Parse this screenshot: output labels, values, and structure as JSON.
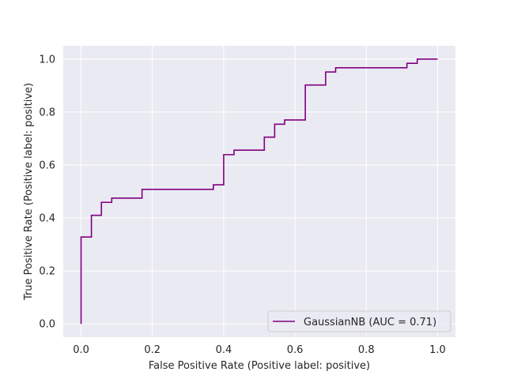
{
  "chart_data": {
    "type": "line",
    "xlabel": "False Positive Rate (Positive label: positive)",
    "ylabel": "True Positive Rate (Positive label: positive)",
    "xlim": [
      -0.05,
      1.05
    ],
    "ylim": [
      -0.05,
      1.05
    ],
    "xticks": [
      "0.0",
      "0.2",
      "0.4",
      "0.6",
      "0.8",
      "1.0"
    ],
    "yticks": [
      "0.0",
      "0.2",
      "0.4",
      "0.6",
      "0.8",
      "1.0"
    ],
    "grid": true,
    "legend_position": "lower-right",
    "colors": {
      "background": "#eaeaf2",
      "grid": "#ffffff",
      "series": "#800080"
    },
    "series": [
      {
        "name": "GaussianNB (AUC = 0.71)",
        "drawstyle": "steps",
        "x": [
          0.0,
          0.0,
          0.029,
          0.029,
          0.057,
          0.057,
          0.086,
          0.086,
          0.171,
          0.171,
          0.371,
          0.371,
          0.4,
          0.4,
          0.429,
          0.429,
          0.514,
          0.514,
          0.543,
          0.543,
          0.571,
          0.571,
          0.629,
          0.629,
          0.686,
          0.686,
          0.714,
          0.714,
          0.914,
          0.914,
          0.943,
          0.943,
          1.0
        ],
        "y": [
          0.0,
          0.328,
          0.328,
          0.41,
          0.41,
          0.459,
          0.459,
          0.475,
          0.475,
          0.508,
          0.508,
          0.525,
          0.525,
          0.639,
          0.639,
          0.656,
          0.656,
          0.705,
          0.705,
          0.754,
          0.754,
          0.77,
          0.77,
          0.902,
          0.902,
          0.951,
          0.951,
          0.967,
          0.967,
          0.984,
          0.984,
          1.0,
          1.0
        ]
      }
    ]
  }
}
